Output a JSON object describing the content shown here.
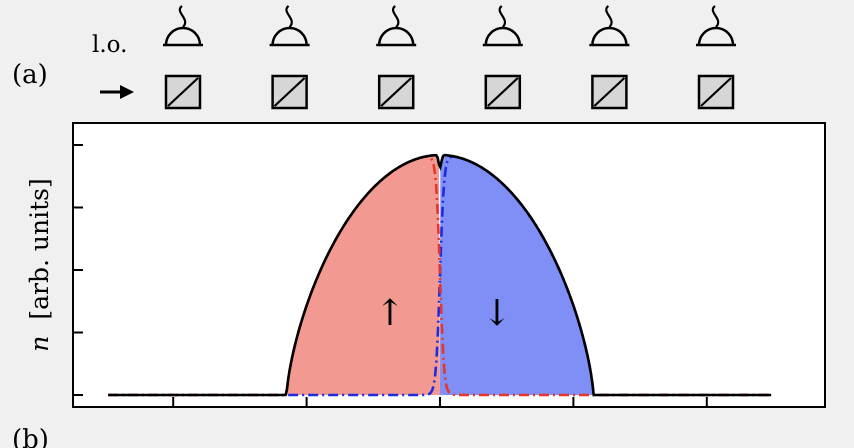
{
  "labels": {
    "panel_a": "(a)",
    "panel_b": "(b)",
    "lo": "l.o.",
    "arrow": "→",
    "up": "↑",
    "down": "↓",
    "ylabel_var": "n",
    "ylabel_units": "[arb. units]"
  },
  "detectors": {
    "count": 6
  },
  "colors": {
    "up_fill": "#f29a92",
    "down_fill": "#7f8ff5",
    "up_line": "#e8352a",
    "down_line": "#1f2be0",
    "total_line": "#000000",
    "background": "#f0f0f0",
    "plot_bg": "#ffffff",
    "splitter_fill": "#d6d6d6"
  },
  "chart_data": {
    "type": "area",
    "x_range": [
      -1,
      1
    ],
    "ylim": [
      0,
      1
    ],
    "x_ticks": [
      -0.8,
      -0.4,
      0,
      0.4,
      0.8
    ],
    "y_ticks": [
      0.25,
      0.5,
      0.75
    ],
    "cloud": {
      "left_edge": -0.46,
      "right_edge": 0.46,
      "peak": 0.96,
      "dip": 0.91
    },
    "series": [
      {
        "label": "↑",
        "region": "left",
        "fill": true,
        "style": "dash-dot"
      },
      {
        "label": "↓",
        "region": "right",
        "fill": true,
        "style": "dash-dot"
      },
      {
        "region": "total",
        "fill": false,
        "style": "solid"
      }
    ]
  }
}
